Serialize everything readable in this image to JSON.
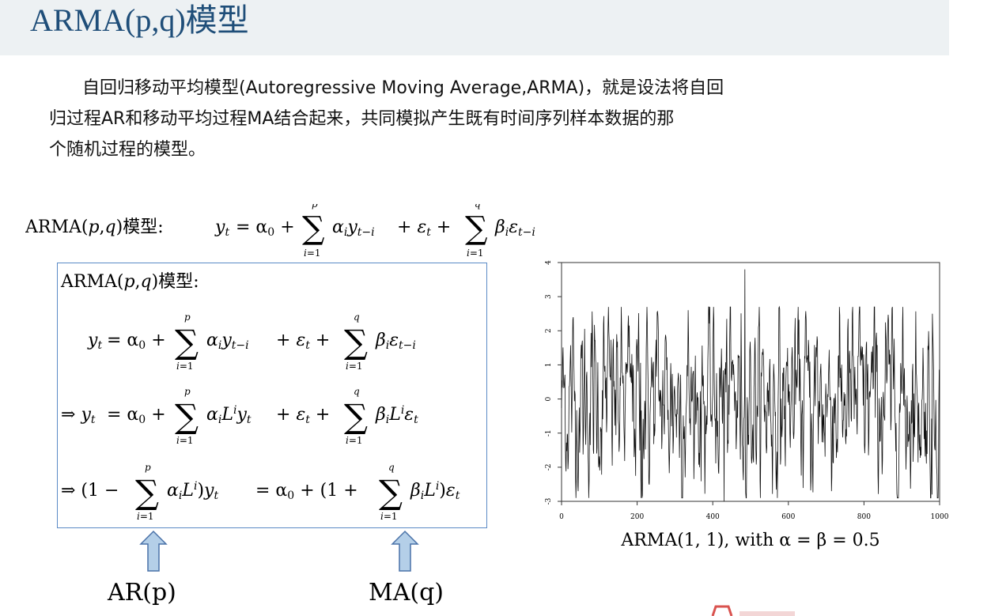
{
  "header": {
    "title": "ARMA(p,q)模型"
  },
  "paragraph": {
    "line1": "自回归移动平均模型(Autoregressive Moving Average,ARMA)，就是设法将自回",
    "line2": "归过程AR和移动平均过程MA结合起来，共同模拟产生既有时间序列样本数据的那",
    "line3": "个随机过程的模型。"
  },
  "formula": {
    "label_prefix": "ARMA(",
    "label_p": "p",
    "label_comma": ",",
    "label_q": "q",
    "label_suffix": ")模型:",
    "label_suffix_bold": ")模型："
  },
  "box": {
    "line1_label": "ARMA(p,q)模型:"
  },
  "arrows": {
    "left_label": "AR(p)",
    "right_label": "MA(q)"
  },
  "chart_data": {
    "type": "line",
    "xlim": [
      0,
      1000
    ],
    "ylim": [
      -3,
      4
    ],
    "x_ticks": [
      "0",
      "200",
      "400",
      "600",
      "800",
      "1000"
    ],
    "y_ticks": [
      "-3",
      "-2",
      "-1",
      "0",
      "1",
      "2",
      "3",
      "4"
    ],
    "caption": "ARMA(1, 1), with α = β = 0.5",
    "n_points": 1000,
    "notable_points": [
      {
        "x": 485,
        "y": 3.8
      },
      {
        "x": 210,
        "y": -2.9
      },
      {
        "x": 430,
        "y": -3.0
      },
      {
        "x": 980,
        "y": -2.8
      }
    ]
  },
  "colors": {
    "header_bg": "#edf1f3",
    "title": "#1f4e79",
    "box_border": "#5b8ac6",
    "arrow_fill": "#b4cfe8",
    "arrow_stroke": "#4a72a8"
  }
}
